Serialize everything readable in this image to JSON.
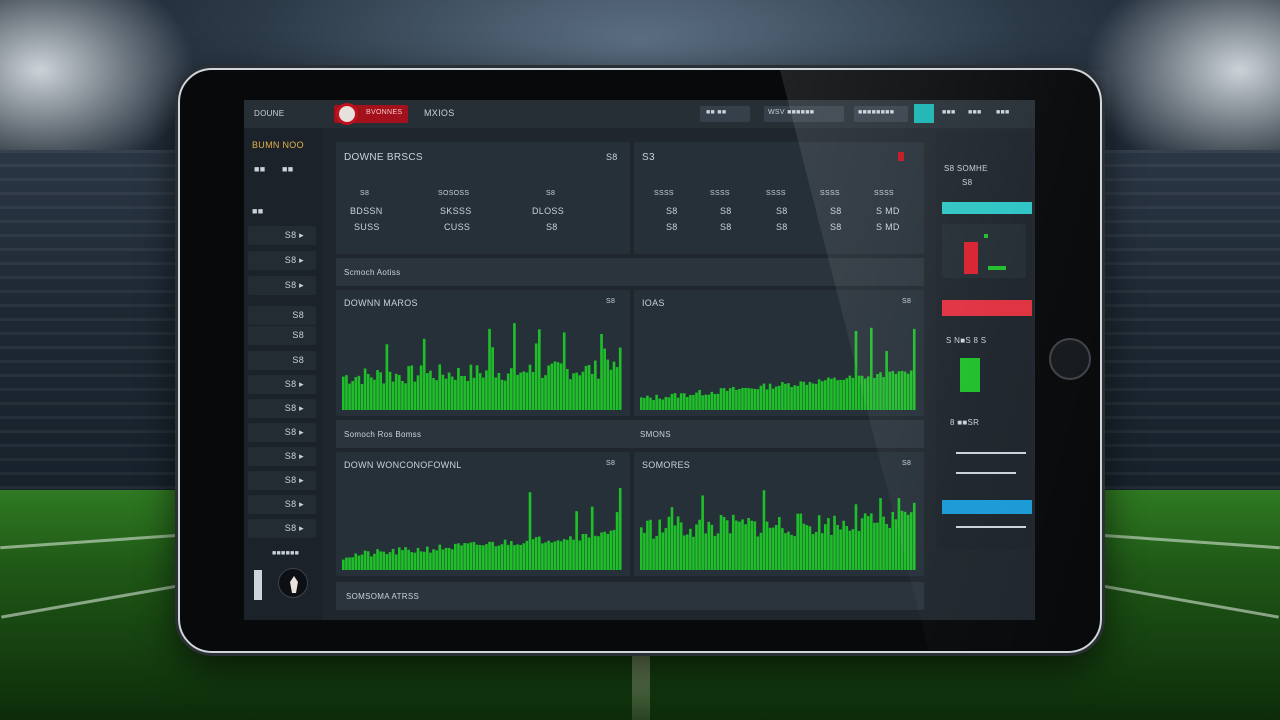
{
  "topbar": {
    "brand": "DOUNE",
    "logo_text": "BVONNES",
    "nav_item": "MXIOS",
    "right_items": [
      "■■ ■■",
      "WSV ■■■■■■",
      "■■■■■■■■",
      "■■■",
      "■■■",
      "■■■"
    ]
  },
  "sidebar": {
    "title": "BUMN NOO",
    "sub_a": "■■",
    "sub_b": "■■",
    "section": "■■",
    "items": [
      "S8 ▸",
      "S8 ▸",
      "S8 ▸",
      "S8",
      "S8",
      "S8",
      "S8 ▸",
      "S8 ▸",
      "S8 ▸",
      "S8 ▸",
      "S8 ▸",
      "S8 ▸",
      "S8 ▸"
    ],
    "footer": "■■■■■■"
  },
  "stats_left": {
    "title": "DOWNE BRSCS",
    "badge": "S8",
    "cols": [
      {
        "head": "S8",
        "r1": "BDSSN",
        "r2": "SUSS"
      },
      {
        "head": "SOSOSS",
        "r1": "SKSSS",
        "r2": "CUSS"
      },
      {
        "head": "S8",
        "r1": "DLOSS",
        "r2": "S8"
      }
    ]
  },
  "stats_right": {
    "title": "S3",
    "cols": [
      {
        "head": "SSSS",
        "r1": "S8",
        "r2": "S8"
      },
      {
        "head": "SSSS",
        "r1": "S8",
        "r2": "S8"
      },
      {
        "head": "SSSS",
        "r1": "S8",
        "r2": "S8"
      },
      {
        "head": "SSSS",
        "r1": "S8",
        "r2": "S8"
      },
      {
        "head": "SSSS",
        "r1": "S MD",
        "r2": "S MD"
      }
    ]
  },
  "section_labels": {
    "strip1": "Scmoch Aotiss",
    "strip2_left": "Somoch Ros Bomss",
    "strip2_right": "SMONS",
    "strip3": "SOMSOMA ATRSS"
  },
  "charts": [
    {
      "title": "DOWNN MAROS",
      "badge": "S8"
    },
    {
      "title": "IOAS",
      "badge": "S8"
    },
    {
      "title": "DOWN WONCONOFOWNL",
      "badge": "S8"
    },
    {
      "title": "SOMORES",
      "badge": "S8"
    }
  ],
  "right_panel": {
    "title": "S8 SOMHE",
    "sub": "S8",
    "label1": "S N■S 8 S",
    "label2": "8 ■■SR",
    "bar_colors": {
      "teal": "#2ec4c4",
      "red": "#e03040",
      "blue": "#1a9ad6"
    }
  },
  "colors": {
    "bar_green": "#1fbf2a",
    "panel": "#263039",
    "accent_red": "#c0121e"
  }
}
